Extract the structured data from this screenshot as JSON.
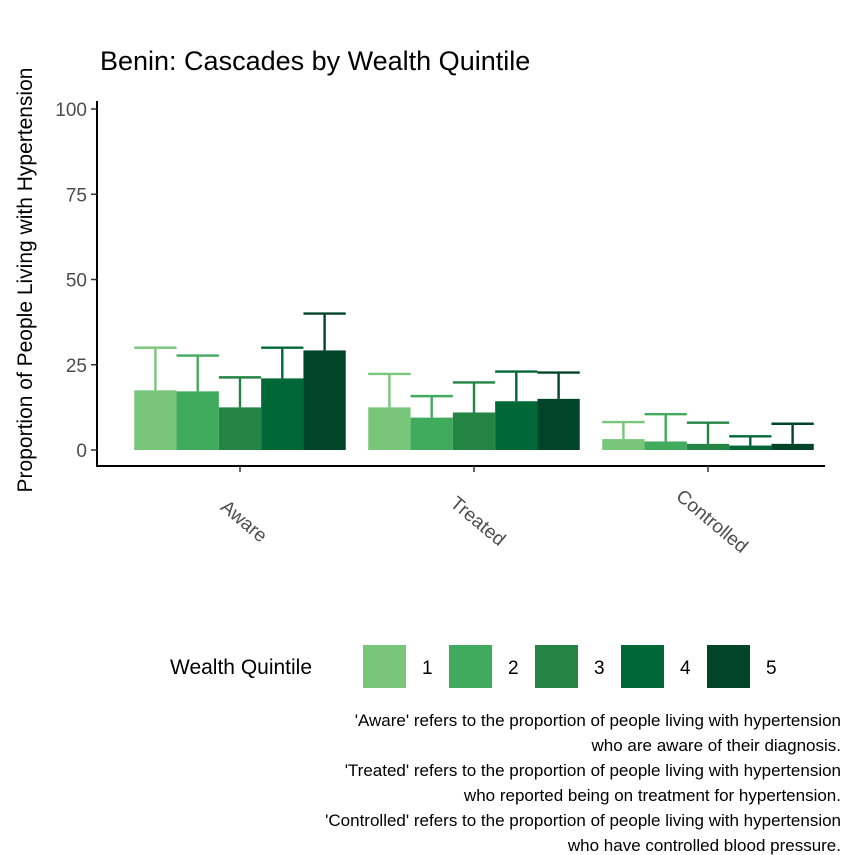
{
  "chart_data": {
    "type": "bar",
    "title": "Benin: Cascades by Wealth Quintile",
    "xlabel": "",
    "ylabel": "Proportion of People Living with Hypertension",
    "ylim": [
      0,
      100
    ],
    "yticks": [
      "0",
      "25",
      "50",
      "75",
      "100"
    ],
    "categories": [
      "Aware",
      "Treated",
      "Controlled"
    ],
    "series": [
      {
        "name": "1",
        "color": "#78c679",
        "values": [
          17.5,
          12.5,
          3.2
        ],
        "upper": [
          30.0,
          22.3,
          8.2
        ]
      },
      {
        "name": "2",
        "color": "#41ab5d",
        "values": [
          17.2,
          9.5,
          2.5
        ],
        "upper": [
          27.7,
          15.8,
          10.5
        ]
      },
      {
        "name": "3",
        "color": "#238443",
        "values": [
          12.5,
          11.0,
          1.8
        ],
        "upper": [
          21.3,
          19.8,
          8.0
        ]
      },
      {
        "name": "4",
        "color": "#006837",
        "values": [
          21.0,
          14.3,
          1.3
        ],
        "upper": [
          30.0,
          23.0,
          4.0
        ]
      },
      {
        "name": "5",
        "color": "#004529",
        "values": [
          29.2,
          15.0,
          1.8
        ],
        "upper": [
          40.0,
          22.7,
          7.7
        ]
      }
    ],
    "grid": false,
    "legend": {
      "title": "Wealth Quintile",
      "position": "bottom"
    }
  },
  "caption": [
    "'Aware' refers to the proportion of people living with hypertension",
    "who are aware of their diagnosis.",
    "'Treated' refers to the proportion of people living with hypertension",
    "who reported being on treatment for hypertension.",
    "'Controlled' refers to the proportion of people living with hypertension",
    "who have controlled blood pressure."
  ]
}
